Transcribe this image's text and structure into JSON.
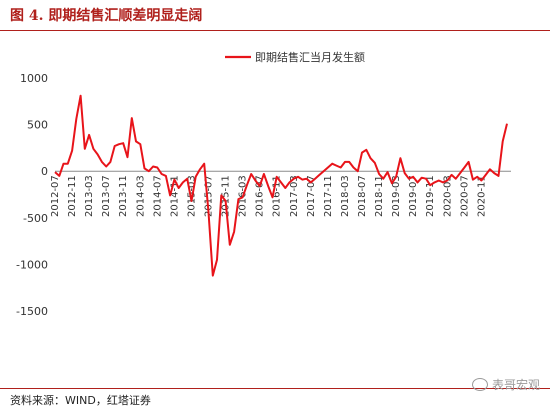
{
  "figure": {
    "title": "图 4. 即期结售汇顺差明显走阔",
    "source": "资料来源：WIND，红塔证券",
    "watermark": "表哥宏观"
  },
  "colors": {
    "series": "#e8141a",
    "accent": "#b0201c"
  },
  "chart_data": {
    "type": "line",
    "legend_position": "top-center",
    "grid": false,
    "ylim": [
      -1500,
      1000
    ],
    "yticks": [
      1000,
      500,
      0,
      -500,
      -1000,
      -1500
    ],
    "xtick_labels": [
      "2012-07",
      "2012-11",
      "2013-03",
      "2013-07",
      "2013-11",
      "2014-03",
      "2014-07",
      "2014-11",
      "2015-03",
      "2015-07",
      "2015-11",
      "2016-03",
      "2016-07",
      "2016-11",
      "2017-03",
      "2017-07",
      "2017-11",
      "2018-03",
      "2018-07",
      "2018-11",
      "2019-03",
      "2019-07",
      "2019-11",
      "2020-03",
      "2020-07",
      "2020-11"
    ],
    "series": [
      {
        "name": "即期结售汇当月发生额",
        "x_start": "2012-07",
        "values": [
          -10,
          -50,
          80,
          80,
          220,
          560,
          810,
          240,
          390,
          240,
          180,
          100,
          50,
          100,
          270,
          290,
          300,
          150,
          570,
          320,
          290,
          30,
          0,
          50,
          40,
          -30,
          -50,
          -260,
          -90,
          -180,
          -120,
          -80,
          -320,
          -60,
          20,
          80,
          -440,
          -1120,
          -950,
          -260,
          -320,
          -790,
          -650,
          -300,
          -280,
          -150,
          -30,
          -100,
          -160,
          -30,
          -160,
          -280,
          -60,
          -120,
          -180,
          -120,
          -80,
          -60,
          -90,
          -80,
          -120,
          -80,
          -40,
          0,
          40,
          80,
          60,
          40,
          100,
          100,
          40,
          0,
          200,
          230,
          140,
          90,
          -30,
          -80,
          -10,
          -130,
          -60,
          140,
          -20,
          -80,
          -60,
          -120,
          -70,
          -80,
          -150,
          -120,
          -100,
          -120,
          -100,
          -40,
          -80,
          -20,
          40,
          100,
          -90,
          -60,
          -100,
          -40,
          20,
          -20,
          -50,
          320,
          510
        ]
      }
    ]
  }
}
